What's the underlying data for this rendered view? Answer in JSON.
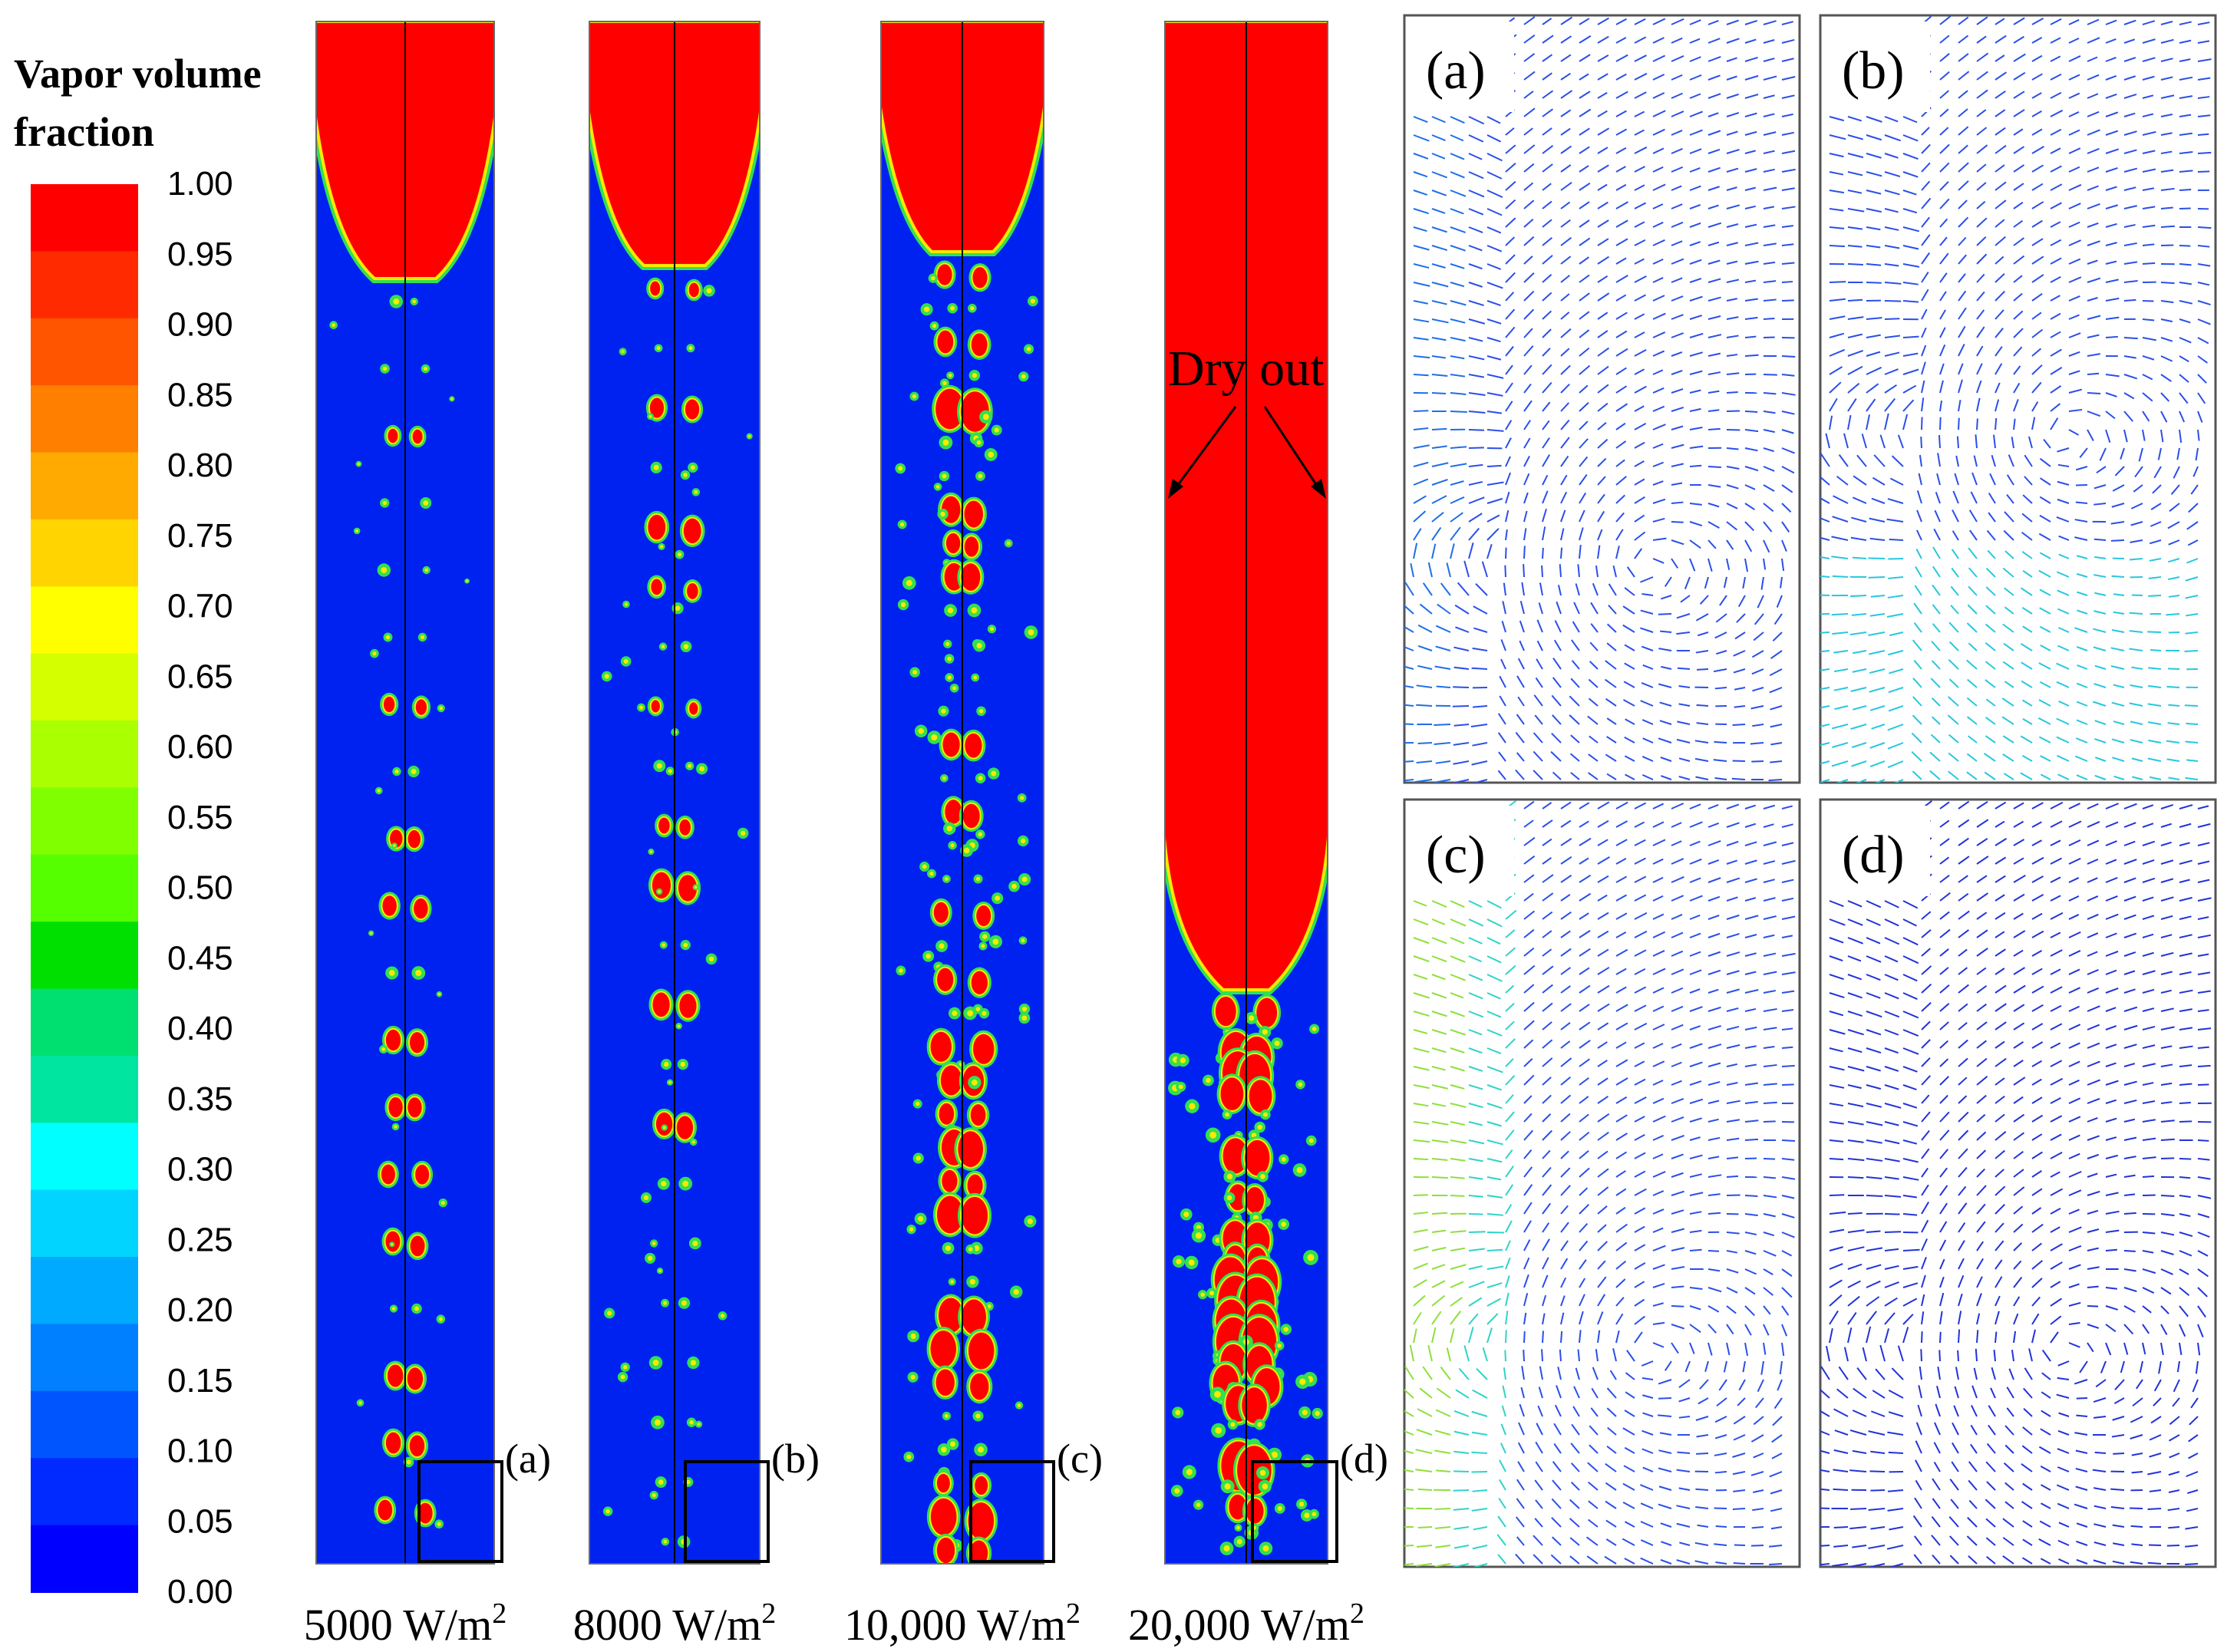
{
  "legend": {
    "title_line1": "Vapor volume",
    "title_line2": "fraction",
    "ticks": [
      "1.00",
      "0.95",
      "0.90",
      "0.85",
      "0.80",
      "0.75",
      "0.70",
      "0.65",
      "0.60",
      "0.55",
      "0.50",
      "0.45",
      "0.40",
      "0.35",
      "0.30",
      "0.25",
      "0.20",
      "0.15",
      "0.10",
      "0.05",
      "0.00"
    ],
    "colors": [
      "#ff0000",
      "#ff2a00",
      "#ff5500",
      "#ff7f00",
      "#ffaa00",
      "#ffd400",
      "#ffff00",
      "#d4ff00",
      "#aaff00",
      "#7fff00",
      "#55ff00",
      "#00e000",
      "#00e070",
      "#00e5a0",
      "#00ffff",
      "#00d4ff",
      "#00aaff",
      "#007fff",
      "#0055ff",
      "#002aff",
      "#0000ff"
    ]
  },
  "columns": [
    {
      "value": "5000 W/m",
      "sup": "2",
      "box_label": "(a)"
    },
    {
      "value": "8000 W/m",
      "sup": "2",
      "box_label": "(b)"
    },
    {
      "value": "10,000 W/m",
      "sup": "2",
      "box_label": "(c)"
    },
    {
      "value": "20,000 W/m",
      "sup": "2",
      "box_label": "(d)"
    }
  ],
  "annotation": {
    "dry_out": "Dry out"
  },
  "panels": [
    "(a)",
    "(b)",
    "(c)",
    "(d)"
  ],
  "colors": {
    "vapor": "#ff0000",
    "liquid": "#0022f0",
    "interface_green": "#32e050",
    "interface_yellow": "#ffe800"
  }
}
